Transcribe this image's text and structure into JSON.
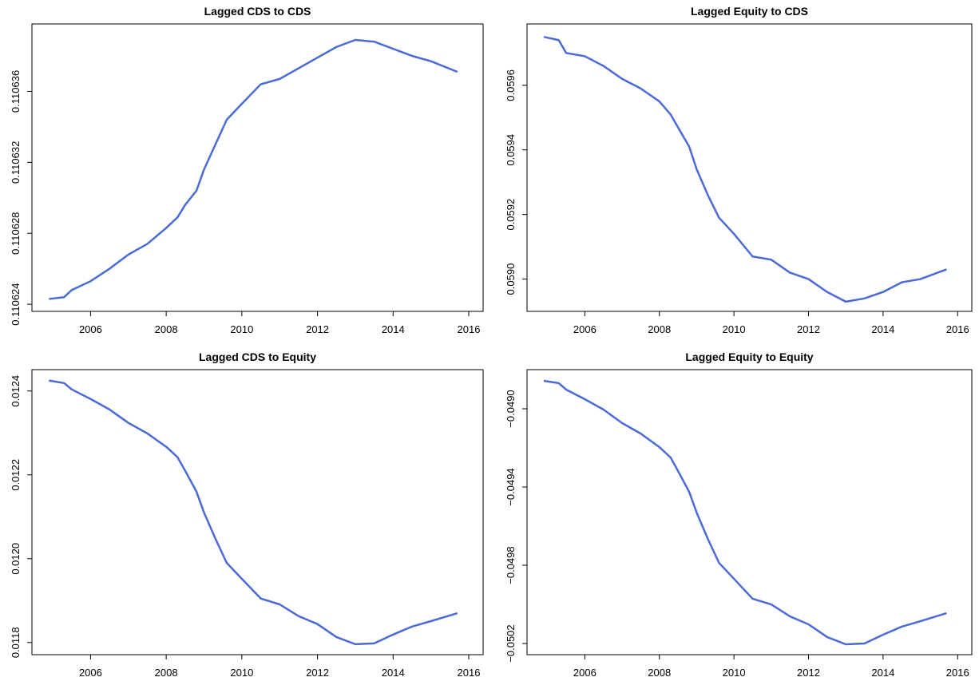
{
  "chart_data": [
    {
      "type": "line",
      "title": "Lagged CDS to CDS",
      "x": [
        2004.9,
        2005.3,
        2005.5,
        2006.0,
        2006.5,
        2007.0,
        2007.5,
        2008.0,
        2008.3,
        2008.5,
        2008.8,
        2009.0,
        2009.3,
        2009.6,
        2010.0,
        2010.5,
        2011.0,
        2011.5,
        2012.0,
        2012.5,
        2013.0,
        2013.5,
        2014.0,
        2014.5,
        2015.0,
        2015.7
      ],
      "values": [
        0.1106243,
        0.1106244,
        0.1106248,
        0.1106253,
        0.110626,
        0.1106268,
        0.1106274,
        0.1106283,
        0.1106289,
        0.1106296,
        0.1106304,
        0.1106316,
        0.110633,
        0.1106344,
        0.1106353,
        0.1106364,
        0.1106367,
        0.1106373,
        0.1106379,
        0.1106385,
        0.1106389,
        0.1106388,
        0.1106384,
        0.110638,
        0.1106377,
        0.1106371
      ],
      "color": "#4a6bd6",
      "xlim": [
        2004.45,
        2016.38
      ],
      "xticks": [
        2006,
        2008,
        2010,
        2012,
        2014,
        2016
      ],
      "ylim": [
        0.1106236,
        0.1106398
      ],
      "yticks": [
        0.110624,
        0.110628,
        0.110632,
        0.110636
      ]
    },
    {
      "type": "line",
      "title": "Lagged Equity to CDS",
      "x": [
        2004.9,
        2005.3,
        2005.5,
        2006.0,
        2006.5,
        2007.0,
        2007.5,
        2008.0,
        2008.3,
        2008.5,
        2008.8,
        2009.0,
        2009.3,
        2009.6,
        2010.0,
        2010.5,
        2011.0,
        2011.5,
        2012.0,
        2012.5,
        2013.0,
        2013.5,
        2014.0,
        2014.5,
        2015.0,
        2015.7
      ],
      "values": [
        0.05975,
        0.05974,
        0.0597,
        0.05969,
        0.05966,
        0.05962,
        0.05959,
        0.05955,
        0.05951,
        0.05947,
        0.05941,
        0.05934,
        0.05926,
        0.05919,
        0.05914,
        0.05907,
        0.05906,
        0.05902,
        0.059,
        0.05896,
        0.05893,
        0.05894,
        0.05896,
        0.05899,
        0.059,
        0.05903
      ],
      "color": "#4a6bd6",
      "xlim": [
        2004.45,
        2016.38
      ],
      "xticks": [
        2006,
        2008,
        2010,
        2012,
        2014,
        2016
      ],
      "ylim": [
        0.0589,
        0.05979
      ],
      "yticks": [
        {
          "value": 0.059,
          "label": "0.0590"
        },
        0.0592,
        0.0594,
        0.0596
      ]
    },
    {
      "type": "line",
      "title": "Lagged CDS to Equity",
      "x": [
        2004.9,
        2005.3,
        2005.5,
        2006.0,
        2006.5,
        2007.0,
        2007.5,
        2008.0,
        2008.3,
        2008.5,
        2008.8,
        2009.0,
        2009.3,
        2009.6,
        2010.0,
        2010.5,
        2011.0,
        2011.5,
        2012.0,
        2012.5,
        2013.0,
        2013.5,
        2014.0,
        2014.5,
        2015.0,
        2015.7
      ],
      "values": [
        0.012425,
        0.012419,
        0.012404,
        0.012381,
        0.012356,
        0.012324,
        0.012299,
        0.012267,
        0.012242,
        0.01221,
        0.01216,
        0.01211,
        0.012048,
        0.01199,
        0.011952,
        0.011905,
        0.011891,
        0.011863,
        0.011844,
        0.011813,
        0.011796,
        0.011798,
        0.011819,
        0.011838,
        0.011851,
        0.01187
      ],
      "color": "#4a6bd6",
      "xlim": [
        2004.45,
        2016.38
      ],
      "xticks": [
        2006,
        2008,
        2010,
        2012,
        2014,
        2016
      ],
      "ylim": [
        0.011771,
        0.012451
      ],
      "yticks": [
        0.0118,
        {
          "value": 0.012,
          "label": "0.0120"
        },
        0.0122,
        0.0124
      ]
    },
    {
      "type": "line",
      "title": "Lagged Equity to Equity",
      "x": [
        2004.9,
        2005.3,
        2005.5,
        2006.0,
        2006.5,
        2007.0,
        2007.5,
        2008.0,
        2008.3,
        2008.5,
        2008.8,
        2009.0,
        2009.3,
        2009.6,
        2010.0,
        2010.5,
        2011.0,
        2011.5,
        2012.0,
        2012.5,
        2013.0,
        2013.5,
        2014.0,
        2014.5,
        2015.0,
        2015.7
      ],
      "values": [
        -0.048857,
        -0.048869,
        -0.048902,
        -0.048951,
        -0.049004,
        -0.049073,
        -0.049127,
        -0.049196,
        -0.049249,
        -0.049318,
        -0.049425,
        -0.049531,
        -0.049665,
        -0.049788,
        -0.049869,
        -0.049971,
        -0.05,
        -0.050061,
        -0.050102,
        -0.050167,
        -0.050204,
        -0.0502,
        -0.050155,
        -0.050114,
        -0.050086,
        -0.050045
      ],
      "color": "#4a6bd6",
      "xlim": [
        2004.45,
        2016.38
      ],
      "xticks": [
        2006,
        2008,
        2010,
        2012,
        2014,
        2016
      ],
      "ylim": [
        -0.050257,
        -0.0488
      ],
      "yticks": [
        {
          "value": -0.0502,
          "label": "−0.0502"
        },
        {
          "value": -0.0498,
          "label": "−0.0498"
        },
        {
          "value": -0.0494,
          "label": "−0.0494"
        },
        {
          "value": -0.049,
          "label": "−0.0490"
        }
      ]
    }
  ]
}
